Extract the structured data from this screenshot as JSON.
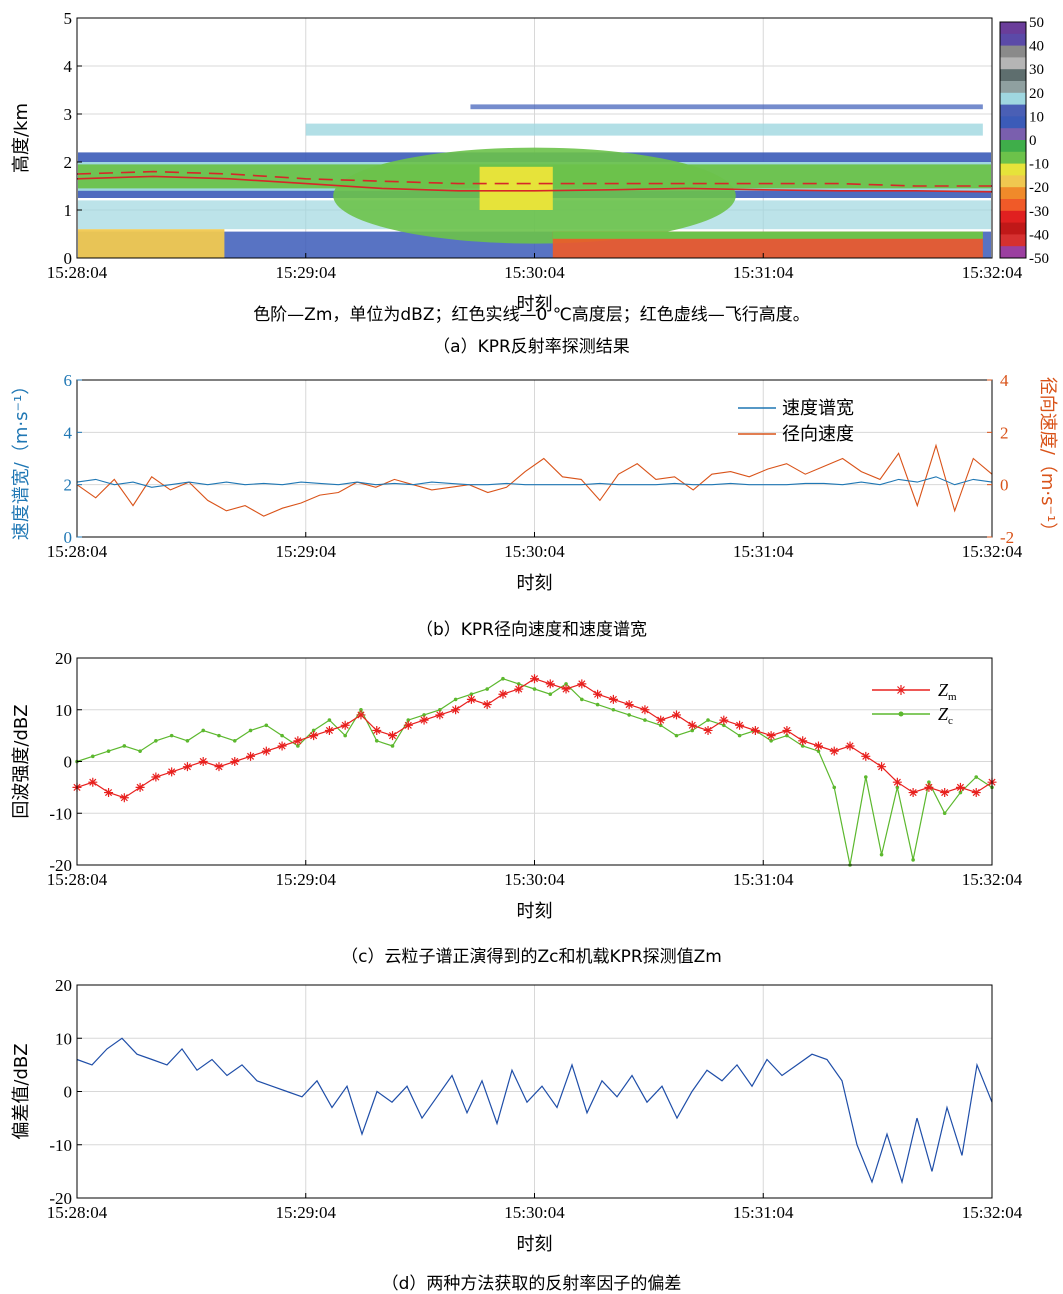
{
  "chart_data": [
    {
      "id": "a",
      "type": "heatmap",
      "caption": "（a）KPR反射率探测结果",
      "note": "色阶—Zm，单位为dBZ；红色实线—0 ℃高度层；红色虚线—飞行高度。",
      "xlabel": "时刻",
      "ylabel": "高度/km",
      "x_ticks": [
        "15:28:04",
        "15:29:04",
        "15:30:04",
        "15:31:04",
        "15:32:04"
      ],
      "y_ticks": [
        0,
        1,
        2,
        3,
        4,
        5
      ],
      "ylim": [
        0,
        5
      ],
      "colorbar": {
        "ticks": [
          50,
          40,
          30,
          20,
          10,
          0,
          -10,
          -20,
          -30,
          -40,
          -50
        ],
        "range": [
          -50,
          50
        ],
        "colors": [
          "#6a3d9a",
          "#5b4aa8",
          "#8a8a8a",
          "#b5b5b5",
          "#5e6e6e",
          "#8fa0a0",
          "#9fd7e0",
          "#4a5fb5",
          "#3b5bb8",
          "#7a5fae",
          "#3fae4a",
          "#6cc24a",
          "#e6e33a",
          "#f0c850",
          "#f08a2a",
          "#f05a28",
          "#e02020",
          "#c01818",
          "#d63030",
          "#9b3fa0"
        ]
      },
      "grid": true,
      "zero_level_km": [
        1.65,
        1.7,
        1.65,
        1.55,
        1.45,
        1.4,
        1.4,
        1.42,
        1.45,
        1.42,
        1.4,
        1.4,
        1.38
      ],
      "flight_level_km": [
        1.75,
        1.8,
        1.75,
        1.65,
        1.6,
        1.55,
        1.55,
        1.55,
        1.55,
        1.55,
        1.55,
        1.5,
        1.5
      ]
    },
    {
      "id": "b",
      "type": "line",
      "caption": "（b）KPR径向速度和速度谱宽",
      "xlabel": "时刻",
      "ylabel_left": "速度谱宽/（m·s⁻¹）",
      "ylabel_right": "径向速度/（m·s⁻¹）",
      "x_ticks": [
        "15:28:04",
        "15:29:04",
        "15:30:04",
        "15:31:04",
        "15:32:04"
      ],
      "y_left_ticks": [
        0,
        2,
        4,
        6
      ],
      "y_right_ticks": [
        -2,
        0,
        2,
        4
      ],
      "ylim_left": [
        0,
        6
      ],
      "ylim_right": [
        -2,
        4
      ],
      "grid": true,
      "legend_position": "top-right",
      "series": [
        {
          "name": "速度谱宽",
          "color": "#1f77b4",
          "axis": "left",
          "values": [
            2.1,
            2.2,
            2.0,
            2.1,
            1.9,
            2.0,
            2.1,
            2.0,
            2.1,
            2.0,
            2.05,
            2.0,
            2.1,
            2.05,
            2.0,
            2.1,
            2.0,
            2.05,
            2.0,
            2.1,
            2.05,
            2.0,
            2.0,
            2.05,
            2.0,
            2.0,
            2.0,
            2.0,
            2.05,
            2.0,
            2.0,
            2.0,
            2.05,
            2.0,
            2.0,
            2.05,
            2.0,
            2.0,
            2.0,
            2.05,
            2.05,
            2.0,
            2.1,
            2.0,
            2.2,
            2.1,
            2.3,
            2.0,
            2.2,
            2.1
          ]
        },
        {
          "name": "径向速度",
          "color": "#d95319",
          "axis": "right",
          "values": [
            0,
            -0.5,
            0.2,
            -0.8,
            0.3,
            -0.2,
            0.1,
            -0.6,
            -1.0,
            -0.8,
            -1.2,
            -0.9,
            -0.7,
            -0.4,
            -0.3,
            0.1,
            -0.1,
            0.2,
            0.0,
            -0.2,
            -0.1,
            0.0,
            -0.3,
            -0.1,
            0.5,
            1.0,
            0.3,
            0.2,
            -0.6,
            0.4,
            0.8,
            0.2,
            0.3,
            -0.2,
            0.4,
            0.5,
            0.3,
            0.6,
            0.8,
            0.4,
            0.7,
            1.0,
            0.5,
            0.2,
            1.2,
            -0.8,
            1.5,
            -1.0,
            1.0,
            0.4
          ]
        }
      ]
    },
    {
      "id": "c",
      "type": "line",
      "caption": "（c）云粒子谱正演得到的Zc和机载KPR探测值Zm",
      "xlabel": "时刻",
      "ylabel": "回波强度/dBZ",
      "x_ticks": [
        "15:28:04",
        "15:29:04",
        "15:30:04",
        "15:31:04",
        "15:32:04"
      ],
      "y_ticks": [
        -20,
        -10,
        0,
        10,
        20
      ],
      "ylim": [
        -20,
        20
      ],
      "grid": true,
      "legend_position": "top-right",
      "series": [
        {
          "name": "Zm",
          "color": "#e8201e",
          "marker": "asterisk",
          "values": [
            -5,
            -4,
            -6,
            -7,
            -5,
            -3,
            -2,
            -1,
            0,
            -1,
            0,
            1,
            2,
            3,
            4,
            5,
            6,
            7,
            9,
            6,
            5,
            7,
            8,
            9,
            10,
            12,
            11,
            13,
            14,
            16,
            15,
            14,
            15,
            13,
            12,
            11,
            10,
            8,
            9,
            7,
            6,
            8,
            7,
            6,
            5,
            6,
            4,
            3,
            2,
            3,
            1,
            -1,
            -4,
            -6,
            -5,
            -6,
            -5,
            -6,
            -4
          ]
        },
        {
          "name": "Zc",
          "color": "#5cb82e",
          "marker": "dot",
          "values": [
            0,
            1,
            2,
            3,
            2,
            4,
            5,
            4,
            6,
            5,
            4,
            6,
            7,
            5,
            3,
            6,
            8,
            5,
            10,
            4,
            3,
            8,
            9,
            10,
            12,
            13,
            14,
            16,
            15,
            14,
            13,
            15,
            12,
            11,
            10,
            9,
            8,
            7,
            5,
            6,
            8,
            7,
            5,
            6,
            4,
            5,
            3,
            2,
            -5,
            -20,
            -3,
            -18,
            -5,
            -19,
            -4,
            -10,
            -6,
            -3,
            -5
          ]
        }
      ]
    },
    {
      "id": "d",
      "type": "line",
      "caption": "（d）两种方法获取的反射率因子的偏差",
      "xlabel": "时刻",
      "ylabel": "偏差值/dBZ",
      "x_ticks": [
        "15:28:04",
        "15:29:04",
        "15:30:04",
        "15:31:04",
        "15:32:04"
      ],
      "y_ticks": [
        -20,
        -10,
        0,
        10,
        20
      ],
      "ylim": [
        -20,
        20
      ],
      "grid": true,
      "series": [
        {
          "name": "偏差",
          "color": "#1f4ea8",
          "values": [
            6,
            5,
            8,
            10,
            7,
            6,
            5,
            8,
            4,
            6,
            3,
            5,
            2,
            1,
            0,
            -1,
            2,
            -3,
            1,
            -8,
            0,
            -2,
            1,
            -5,
            -1,
            3,
            -4,
            2,
            -6,
            4,
            -2,
            1,
            -3,
            5,
            -4,
            2,
            -1,
            3,
            -2,
            1,
            -5,
            0,
            4,
            2,
            5,
            1,
            6,
            3,
            5,
            7,
            6,
            2,
            -10,
            -17,
            -8,
            -17,
            -5,
            -15,
            -3,
            -12,
            5,
            -2
          ]
        }
      ]
    }
  ]
}
